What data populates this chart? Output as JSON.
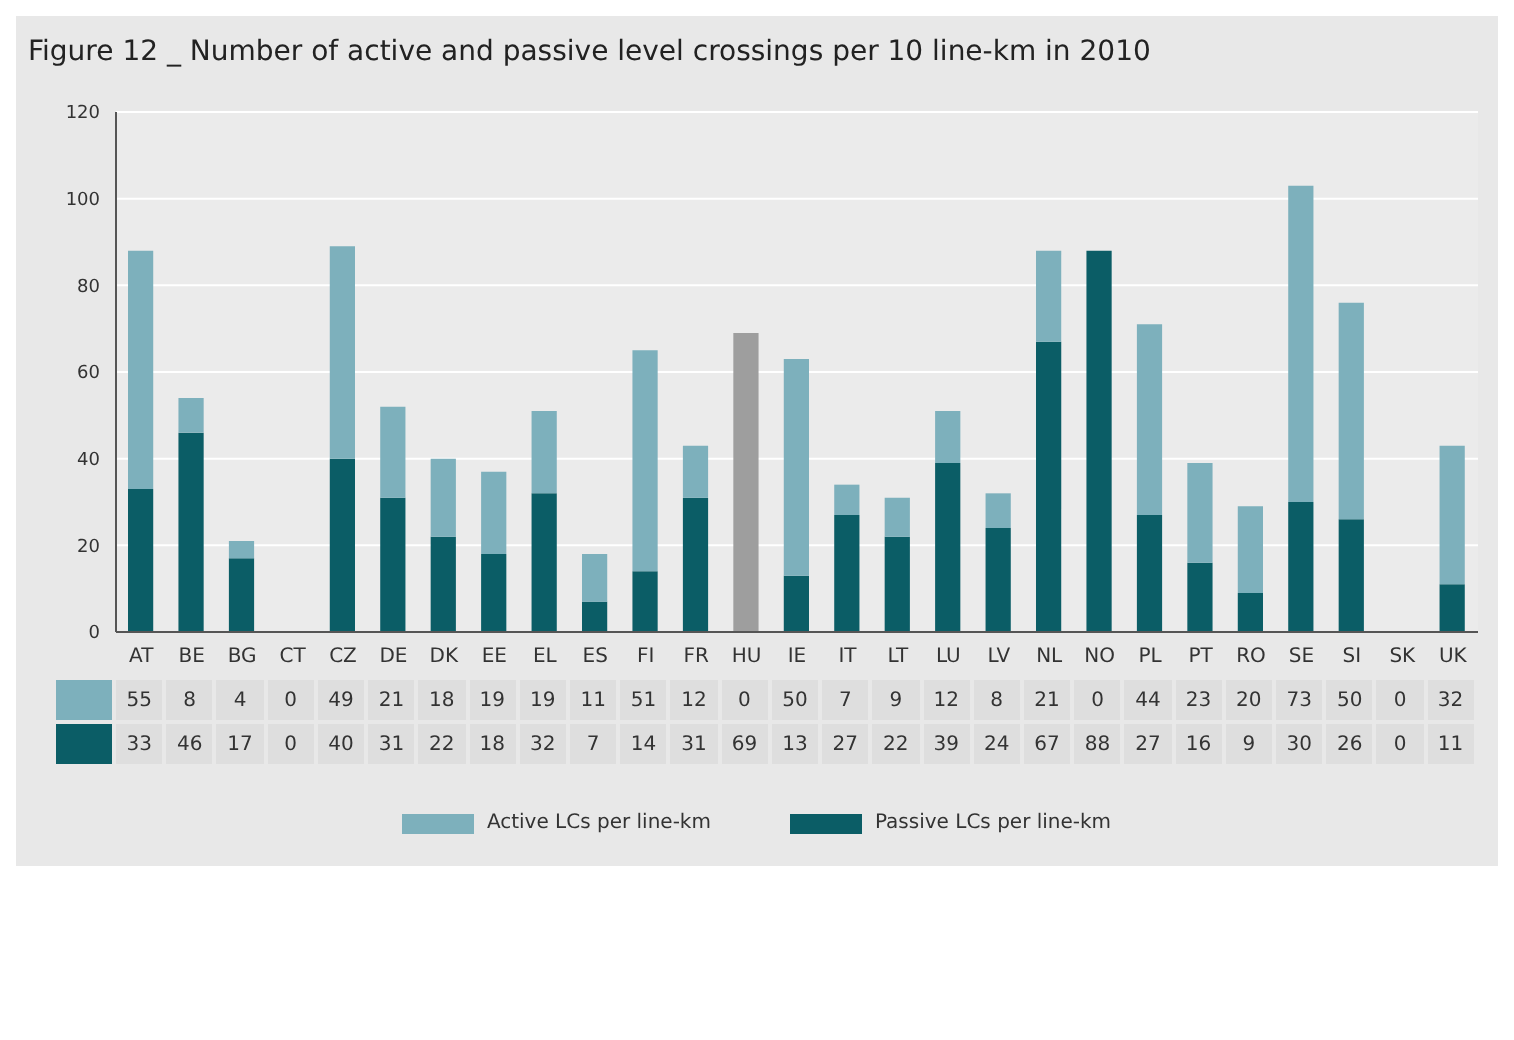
{
  "chart_data": {
    "type": "bar",
    "title": "Figure 12 _ Number of active and passive level crossings per 10 line-km in 2010",
    "categories": [
      "AT",
      "BE",
      "BG",
      "CT",
      "CZ",
      "DE",
      "DK",
      "EE",
      "EL",
      "ES",
      "FI",
      "FR",
      "HU",
      "IE",
      "IT",
      "LT",
      "LU",
      "LV",
      "NL",
      "NO",
      "PL",
      "PT",
      "RO",
      "SE",
      "SI",
      "SK",
      "UK"
    ],
    "series": [
      {
        "name": "Passive LCs per line-km",
        "color": "#0b5d66",
        "colors": [
          "#0b5d66",
          "#0b5d66",
          "#0b5d66",
          "#0b5d66",
          "#0b5d66",
          "#0b5d66",
          "#0b5d66",
          "#0b5d66",
          "#0b5d66",
          "#0b5d66",
          "#0b5d66",
          "#0b5d66",
          "#9e9e9e",
          "#0b5d66",
          "#0b5d66",
          "#0b5d66",
          "#0b5d66",
          "#0b5d66",
          "#0b5d66",
          "#0b5d66",
          "#0b5d66",
          "#0b5d66",
          "#0b5d66",
          "#0b5d66",
          "#0b5d66",
          "#0b5d66",
          "#0b5d66"
        ],
        "values": [
          33,
          46,
          17,
          0,
          40,
          31,
          22,
          18,
          32,
          7,
          14,
          31,
          69,
          13,
          27,
          22,
          39,
          24,
          67,
          88,
          27,
          16,
          9,
          30,
          26,
          0,
          11
        ]
      },
      {
        "name": "Active LCs per line-km",
        "color": "#7db0bc",
        "values": [
          55,
          8,
          4,
          0,
          49,
          21,
          18,
          19,
          19,
          11,
          51,
          12,
          0,
          50,
          7,
          9,
          12,
          8,
          21,
          0,
          44,
          23,
          20,
          73,
          50,
          0,
          32
        ]
      }
    ],
    "stacked": true,
    "ylim": [
      0,
      120
    ],
    "yticks": [
      0,
      20,
      40,
      60,
      80,
      100,
      120
    ],
    "grid": "y",
    "legend": "bottom",
    "data_labels": true
  }
}
